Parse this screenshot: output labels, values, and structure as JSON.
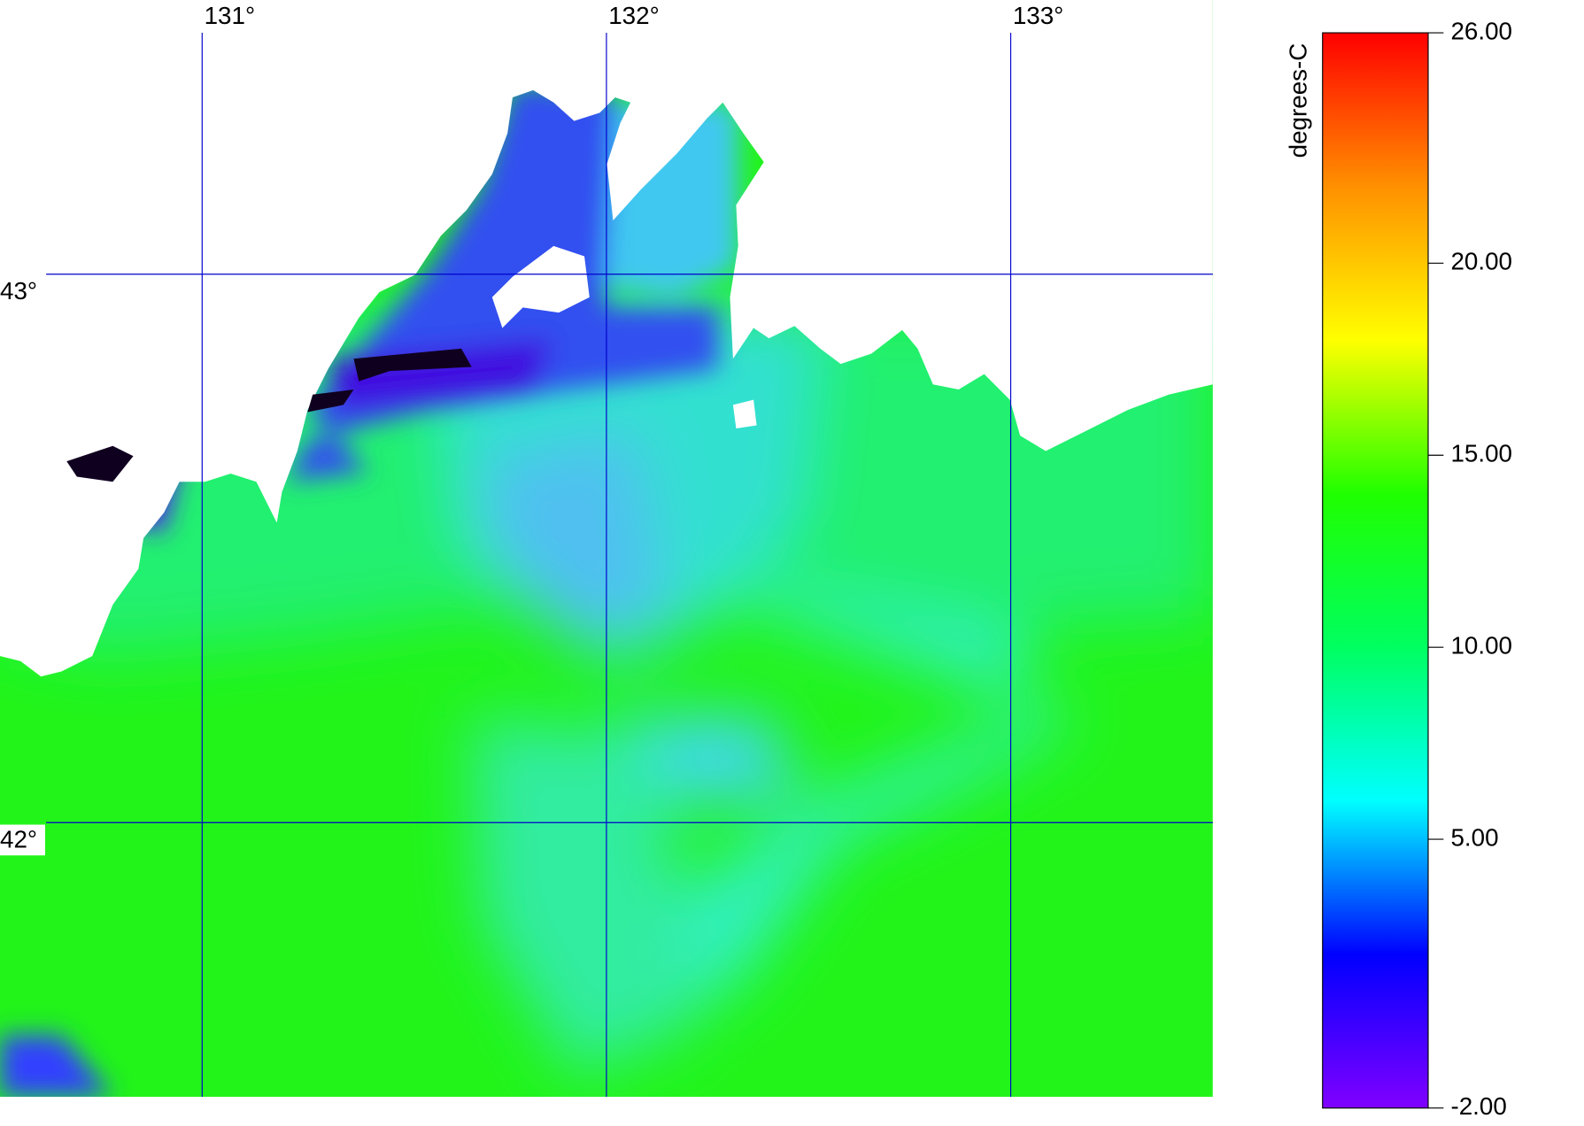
{
  "map": {
    "lonlim": [
      130.5,
      133.5
    ],
    "latlim": [
      41.5,
      43.5
    ],
    "lon_lines": [
      {
        "value": 131,
        "label": "131°"
      },
      {
        "value": 132,
        "label": "132°"
      },
      {
        "value": 133,
        "label": "133°"
      }
    ],
    "lat_lines": [
      {
        "value": 43,
        "label": "43°"
      },
      {
        "value": 42,
        "label": "42°"
      }
    ],
    "grid_color": "#0000cc"
  },
  "colorbar": {
    "label": "degrees-C",
    "lim": [
      -2,
      26
    ],
    "ticks": [
      {
        "value": 26,
        "label": "26.00"
      },
      {
        "value": 20,
        "label": "20.00"
      },
      {
        "value": 15,
        "label": "15.00"
      },
      {
        "value": 10,
        "label": "10.00"
      },
      {
        "value": 5,
        "label": "5.00"
      },
      {
        "value": -2,
        "label": "-2.00"
      }
    ],
    "colors": [
      "#8000ff",
      "#0000ff",
      "#00ffff",
      "#00ff60",
      "#20ff00",
      "#ffff00",
      "#ff9000",
      "#ff0000"
    ]
  }
}
